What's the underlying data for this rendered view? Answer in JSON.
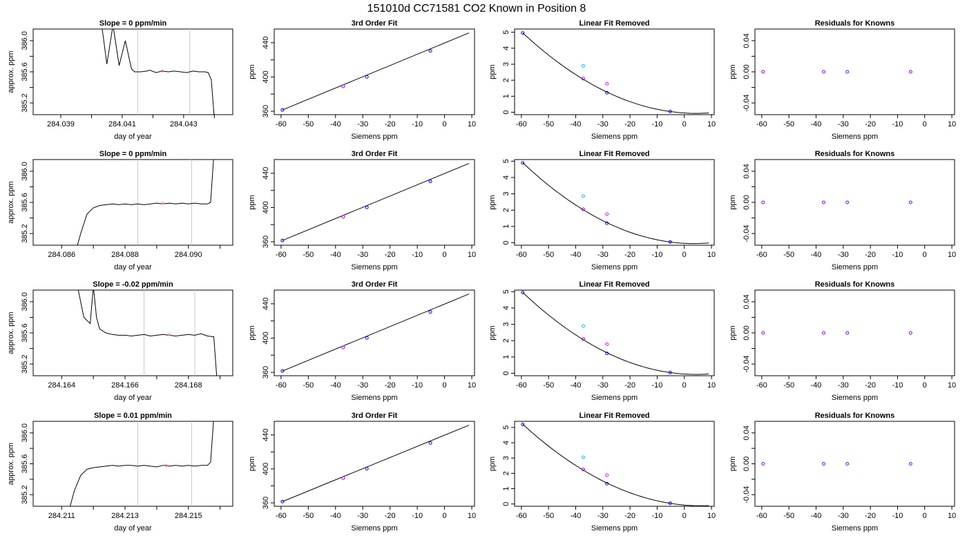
{
  "figure": {
    "title": "151010d      CC71581    CO2 Known in Position  8"
  },
  "colors": {
    "frame": "#000000",
    "trace": "#000000",
    "fit_line": "#000000",
    "window_marker": "#c8c8c8",
    "mean_point": "#ff69b4",
    "primary_points": "#0000ff",
    "raw_points_cyan": "#00bfff",
    "raw_points_magenta": "#ff00ff",
    "residual_points": "#8000ff"
  },
  "chart_data": [
    {
      "type": "line",
      "row": 0,
      "col": 0,
      "title": "Slope =  0  ppm/min",
      "xlabel": "day of year",
      "ylabel": "approx. ppm",
      "xlim": [
        284.0381,
        284.0446
      ],
      "ylim": [
        385.05,
        386.15
      ],
      "xticks": [
        284.039,
        284.041,
        284.043
      ],
      "xtick_labels": [
        "284.039",
        "284.041",
        "284.043"
      ],
      "xminor": [
        284.04,
        284.042,
        284.044
      ],
      "yticks": [
        385.2,
        385.6,
        386.0
      ],
      "ytick_labels": [
        "385.2",
        "385.6",
        "386.0"
      ],
      "yminor": [
        385.4,
        385.8
      ],
      "vlines": [
        284.0415,
        284.0432
      ],
      "mean_point": [
        284.0423,
        385.61
      ],
      "series": [
        {
          "x": [
            284.0403,
            284.0405,
            284.0407,
            284.0409,
            284.0411,
            284.0413,
            284.0414,
            284.0416,
            284.0418,
            284.0419,
            284.0421,
            284.0423,
            284.0425,
            284.0427,
            284.0429,
            284.0431,
            284.0433,
            284.0435,
            284.0437,
            284.0438,
            284.0439,
            284.044
          ],
          "y": [
            386.3,
            385.7,
            386.2,
            385.68,
            386.0,
            385.64,
            385.6,
            385.6,
            385.61,
            385.62,
            385.59,
            385.61,
            385.6,
            385.61,
            385.6,
            385.59,
            385.61,
            385.6,
            385.6,
            385.59,
            385.5,
            385.0
          ]
        }
      ]
    },
    {
      "type": "scatter",
      "row": 0,
      "col": 1,
      "title": "3rd Order Fit",
      "xlabel": "Siemens ppm",
      "ylabel": "ppm",
      "xlim": [
        -62.5,
        11
      ],
      "ylim": [
        356,
        456
      ],
      "xticks": [
        -60,
        -50,
        -40,
        -30,
        -20,
        -10,
        0,
        10
      ],
      "yticks": [
        360,
        400,
        440
      ],
      "yminor": [
        380,
        420
      ],
      "fit_line": {
        "x": [
          -59.5,
          9
        ],
        "y": [
          361.5,
          451.5
        ]
      },
      "points": {
        "x": [
          -59.5,
          -37.2,
          -28.5,
          -5.2
        ],
        "y": [
          361.5,
          389.1,
          400.2,
          430.5
        ]
      }
    },
    {
      "type": "scatter",
      "row": 0,
      "col": 2,
      "title": "Linear Fit Removed",
      "xlabel": "Siemens ppm",
      "ylabel": "ppm",
      "xlim": [
        -62.5,
        11
      ],
      "ylim": [
        -0.15,
        5.2
      ],
      "xticks": [
        -60,
        -50,
        -40,
        -30,
        -20,
        -10,
        0,
        10
      ],
      "yticks": [
        0,
        1,
        2,
        3,
        4,
        5
      ],
      "curve_points": {
        "x": [
          -59.5,
          -37.2,
          -28.5,
          -5.2
        ],
        "y": [
          4.95,
          2.1,
          1.22,
          0.05
        ]
      },
      "cyan_points": {
        "x": [
          -37.2
        ],
        "y": [
          2.9
        ]
      },
      "magenta_points": {
        "x": [
          -28.5
        ],
        "y": [
          1.78
        ]
      }
    },
    {
      "type": "scatter",
      "row": 0,
      "col": 3,
      "title": "Residuals for Knowns",
      "xlabel": "Siemens ppm",
      "ylabel": "ppm",
      "xlim": [
        -62.5,
        11
      ],
      "ylim": [
        -0.055,
        0.055
      ],
      "xticks": [
        -60,
        -50,
        -40,
        -30,
        -20,
        -10,
        0,
        10
      ],
      "yticks": [
        -0.04,
        0.0,
        0.04
      ],
      "ytick_labels": [
        "-0.04",
        "0.00",
        "0.04"
      ],
      "yminor": [
        -0.02,
        0.02
      ],
      "points": {
        "x": [
          -59.5,
          -37.2,
          -28.5,
          -5.2
        ],
        "y": [
          0,
          0,
          0,
          0
        ]
      }
    },
    {
      "type": "line",
      "row": 1,
      "col": 0,
      "title": "Slope =  0  ppm/min",
      "xlabel": "day of year",
      "ylabel": "approx. ppm",
      "xlim": [
        284.0851,
        284.0914
      ],
      "ylim": [
        385.05,
        386.15
      ],
      "xticks": [
        284.086,
        284.088,
        284.09
      ],
      "xtick_labels": [
        "284.086",
        "284.088",
        "284.090"
      ],
      "xminor": [
        284.087,
        284.089,
        284.091
      ],
      "yticks": [
        385.2,
        385.6,
        386.0
      ],
      "ytick_labels": [
        "385.2",
        "385.6",
        "386.0"
      ],
      "yminor": [
        385.4,
        385.8
      ],
      "vlines": [
        284.0884,
        284.0901
      ],
      "mean_point": [
        284.0892,
        385.59
      ],
      "series": [
        {
          "x": [
            284.0864,
            284.0866,
            284.0868,
            284.087,
            284.0872,
            284.0874,
            284.0876,
            284.0878,
            284.088,
            284.0882,
            284.0884,
            284.0886,
            284.0888,
            284.089,
            284.0892,
            284.0894,
            284.0896,
            284.0898,
            284.09,
            284.0902,
            284.0904,
            284.0906,
            284.0907,
            284.0908
          ],
          "y": [
            384.9,
            385.2,
            385.45,
            385.53,
            385.56,
            385.57,
            385.58,
            385.57,
            385.58,
            385.57,
            385.58,
            385.57,
            385.58,
            385.59,
            385.58,
            385.59,
            385.58,
            385.59,
            385.58,
            385.59,
            385.58,
            385.58,
            385.6,
            386.2
          ]
        }
      ]
    },
    {
      "type": "scatter",
      "row": 1,
      "col": 1,
      "title": "3rd Order Fit",
      "xlabel": "Siemens ppm",
      "ylabel": "ppm",
      "xlim": [
        -62.5,
        11
      ],
      "ylim": [
        356,
        456
      ],
      "xticks": [
        -60,
        -50,
        -40,
        -30,
        -20,
        -10,
        0,
        10
      ],
      "yticks": [
        360,
        400,
        440
      ],
      "yminor": [
        380,
        420
      ],
      "fit_line": {
        "x": [
          -59.5,
          9
        ],
        "y": [
          361.5,
          451.5
        ]
      },
      "points": {
        "x": [
          -59.5,
          -37.2,
          -28.5,
          -5.2
        ],
        "y": [
          361.5,
          389.1,
          400.2,
          430.5
        ]
      }
    },
    {
      "type": "scatter",
      "row": 1,
      "col": 2,
      "title": "Linear Fit Removed",
      "xlabel": "Siemens ppm",
      "ylabel": "ppm",
      "xlim": [
        -62.5,
        11
      ],
      "ylim": [
        -0.15,
        5.1
      ],
      "xticks": [
        -60,
        -50,
        -40,
        -30,
        -20,
        -10,
        0,
        10
      ],
      "yticks": [
        0,
        1,
        2,
        3,
        4,
        5
      ],
      "curve_points": {
        "x": [
          -59.5,
          -37.2,
          -28.5,
          -5.2
        ],
        "y": [
          4.9,
          2.05,
          1.2,
          0.05
        ]
      },
      "cyan_points": {
        "x": [
          -37.2
        ],
        "y": [
          2.85
        ]
      },
      "magenta_points": {
        "x": [
          -28.5
        ],
        "y": [
          1.75
        ]
      }
    },
    {
      "type": "scatter",
      "row": 1,
      "col": 3,
      "title": "Residuals for Knowns",
      "xlabel": "Siemens ppm",
      "ylabel": "ppm",
      "xlim": [
        -62.5,
        11
      ],
      "ylim": [
        -0.055,
        0.055
      ],
      "xticks": [
        -60,
        -50,
        -40,
        -30,
        -20,
        -10,
        0,
        10
      ],
      "yticks": [
        -0.04,
        0.0,
        0.04
      ],
      "ytick_labels": [
        "-0.04",
        "0.00",
        "0.04"
      ],
      "yminor": [
        -0.02,
        0.02
      ],
      "points": {
        "x": [
          -59.5,
          -37.2,
          -28.5,
          -5.2
        ],
        "y": [
          0,
          0,
          0,
          0
        ]
      }
    },
    {
      "type": "line",
      "row": 2,
      "col": 0,
      "title": "Slope =  -0.02  ppm/min",
      "xlabel": "day of year",
      "ylabel": "approx. ppm",
      "xlim": [
        284.1631,
        284.1694
      ],
      "ylim": [
        385.05,
        386.15
      ],
      "xticks": [
        284.164,
        284.166,
        284.168
      ],
      "xtick_labels": [
        "284.164",
        "284.166",
        "284.168"
      ],
      "xminor": [
        284.165,
        284.167,
        284.169
      ],
      "yticks": [
        385.2,
        385.6,
        386.0
      ],
      "ytick_labels": [
        "385.2",
        "385.6",
        "386.0"
      ],
      "yminor": [
        385.4,
        385.8
      ],
      "vlines": [
        284.1666,
        284.1682
      ],
      "mean_point": [
        284.1674,
        385.58
      ],
      "series": [
        {
          "x": [
            284.1645,
            284.1647,
            284.1649,
            284.165,
            284.1651,
            284.1652,
            284.1654,
            284.1656,
            284.1658,
            284.166,
            284.1662,
            284.1664,
            284.1666,
            284.1668,
            284.167,
            284.1672,
            284.1674,
            284.1676,
            284.1678,
            284.168,
            284.1682,
            284.1684,
            284.1686,
            284.1688,
            284.1689
          ],
          "y": [
            386.2,
            385.8,
            385.72,
            386.2,
            385.8,
            385.65,
            385.6,
            385.58,
            385.57,
            385.57,
            385.56,
            385.57,
            385.58,
            385.56,
            385.57,
            385.58,
            385.57,
            385.56,
            385.57,
            385.58,
            385.57,
            385.59,
            385.56,
            385.55,
            385.0
          ]
        }
      ]
    },
    {
      "type": "scatter",
      "row": 2,
      "col": 1,
      "title": "3rd Order Fit",
      "xlabel": "Siemens ppm",
      "ylabel": "ppm",
      "xlim": [
        -62.5,
        11
      ],
      "ylim": [
        356,
        456
      ],
      "xticks": [
        -60,
        -50,
        -40,
        -30,
        -20,
        -10,
        0,
        10
      ],
      "yticks": [
        360,
        400,
        440
      ],
      "yminor": [
        380,
        420
      ],
      "fit_line": {
        "x": [
          -59.5,
          9
        ],
        "y": [
          361.5,
          451.5
        ]
      },
      "points": {
        "x": [
          -59.5,
          -37.2,
          -28.5,
          -5.2
        ],
        "y": [
          361.5,
          389.1,
          400.2,
          430.5
        ]
      }
    },
    {
      "type": "scatter",
      "row": 2,
      "col": 2,
      "title": "Linear Fit Removed",
      "xlabel": "Siemens ppm",
      "ylabel": "ppm",
      "xlim": [
        -62.5,
        11
      ],
      "ylim": [
        -0.15,
        5.1
      ],
      "xticks": [
        -60,
        -50,
        -40,
        -30,
        -20,
        -10,
        0,
        10
      ],
      "yticks": [
        0,
        1,
        2,
        3,
        4,
        5
      ],
      "curve_points": {
        "x": [
          -59.5,
          -37.2,
          -28.5,
          -5.2
        ],
        "y": [
          4.95,
          2.1,
          1.22,
          0.05
        ]
      },
      "cyan_points": {
        "x": [
          -37.2
        ],
        "y": [
          2.9
        ]
      },
      "magenta_points": {
        "x": [
          -28.5
        ],
        "y": [
          1.78
        ]
      }
    },
    {
      "type": "scatter",
      "row": 2,
      "col": 3,
      "title": "Residuals for Knowns",
      "xlabel": "Siemens ppm",
      "ylabel": "ppm",
      "xlim": [
        -62.5,
        11
      ],
      "ylim": [
        -0.055,
        0.055
      ],
      "xticks": [
        -60,
        -50,
        -40,
        -30,
        -20,
        -10,
        0,
        10
      ],
      "yticks": [
        -0.04,
        0.0,
        0.04
      ],
      "ytick_labels": [
        "-0.04",
        "0.00",
        "0.04"
      ],
      "yminor": [
        -0.02,
        0.02
      ],
      "points": {
        "x": [
          -59.5,
          -37.2,
          -28.5,
          -5.2
        ],
        "y": [
          0,
          0,
          0,
          0
        ]
      }
    },
    {
      "type": "line",
      "row": 3,
      "col": 0,
      "title": "Slope =  0.01  ppm/min",
      "xlabel": "day of year",
      "ylabel": "approx. ppm",
      "xlim": [
        284.2101,
        284.2164
      ],
      "ylim": [
        385.05,
        386.15
      ],
      "xticks": [
        284.211,
        284.213,
        284.215
      ],
      "xtick_labels": [
        "284.211",
        "284.213",
        "284.215"
      ],
      "xminor": [
        284.212,
        284.214,
        284.216
      ],
      "yticks": [
        385.2,
        385.6,
        386.0
      ],
      "ytick_labels": [
        "385.2",
        "385.6",
        "386.0"
      ],
      "yminor": [
        385.4,
        385.8
      ],
      "vlines": [
        284.2134,
        284.2151
      ],
      "mean_point": [
        284.2143,
        385.58
      ],
      "series": [
        {
          "x": [
            284.2112,
            284.2114,
            284.2116,
            284.2118,
            284.212,
            284.2122,
            284.2124,
            284.2126,
            284.2128,
            284.213,
            284.2132,
            284.2134,
            284.2136,
            284.2138,
            284.214,
            284.2142,
            284.2144,
            284.2146,
            284.2148,
            284.215,
            284.2152,
            284.2154,
            284.2156,
            284.2157,
            284.2158
          ],
          "y": [
            384.95,
            385.25,
            385.45,
            385.53,
            385.55,
            385.56,
            385.57,
            385.58,
            385.57,
            385.58,
            385.58,
            385.57,
            385.58,
            385.57,
            385.56,
            385.58,
            385.57,
            385.58,
            385.57,
            385.58,
            385.57,
            385.58,
            385.58,
            385.62,
            386.2
          ]
        }
      ]
    },
    {
      "type": "scatter",
      "row": 3,
      "col": 1,
      "title": "3rd Order Fit",
      "xlabel": "Siemens ppm",
      "ylabel": "ppm",
      "xlim": [
        -62.5,
        11
      ],
      "ylim": [
        356,
        456
      ],
      "xticks": [
        -60,
        -50,
        -40,
        -30,
        -20,
        -10,
        0,
        10
      ],
      "yticks": [
        360,
        400,
        440
      ],
      "yminor": [
        380,
        420
      ],
      "fit_line": {
        "x": [
          -59.5,
          9
        ],
        "y": [
          361.5,
          451.5
        ]
      },
      "points": {
        "x": [
          -59.5,
          -37.2,
          -28.5,
          -5.2
        ],
        "y": [
          361.5,
          389.1,
          400.2,
          430.5
        ]
      }
    },
    {
      "type": "scatter",
      "row": 3,
      "col": 2,
      "title": "Linear Fit Removed",
      "xlabel": "Siemens ppm",
      "ylabel": "ppm",
      "xlim": [
        -62.5,
        11
      ],
      "ylim": [
        -0.15,
        5.4
      ],
      "xticks": [
        -60,
        -50,
        -40,
        -30,
        -20,
        -10,
        0,
        10
      ],
      "yticks": [
        0,
        1,
        2,
        3,
        4,
        5
      ],
      "curve_points": {
        "x": [
          -59.5,
          -37.2,
          -28.5,
          -5.2
        ],
        "y": [
          5.2,
          2.25,
          1.33,
          0.05
        ]
      },
      "cyan_points": {
        "x": [
          -37.2
        ],
        "y": [
          3.05
        ]
      },
      "magenta_points": {
        "x": [
          -28.5
        ],
        "y": [
          1.88
        ]
      }
    },
    {
      "type": "scatter",
      "row": 3,
      "col": 3,
      "title": "Residuals for Knowns",
      "xlabel": "Siemens ppm",
      "ylabel": "ppm",
      "xlim": [
        -62.5,
        11
      ],
      "ylim": [
        -0.055,
        0.055
      ],
      "xticks": [
        -60,
        -50,
        -40,
        -30,
        -20,
        -10,
        0,
        10
      ],
      "yticks": [
        -0.04,
        0.0,
        0.04
      ],
      "ytick_labels": [
        "-0.04",
        "0.00",
        "0.04"
      ],
      "yminor": [
        -0.02,
        0.02
      ],
      "points": {
        "x": [
          -59.5,
          -37.2,
          -28.5,
          -5.2
        ],
        "y": [
          0,
          0,
          0,
          0
        ]
      }
    }
  ]
}
